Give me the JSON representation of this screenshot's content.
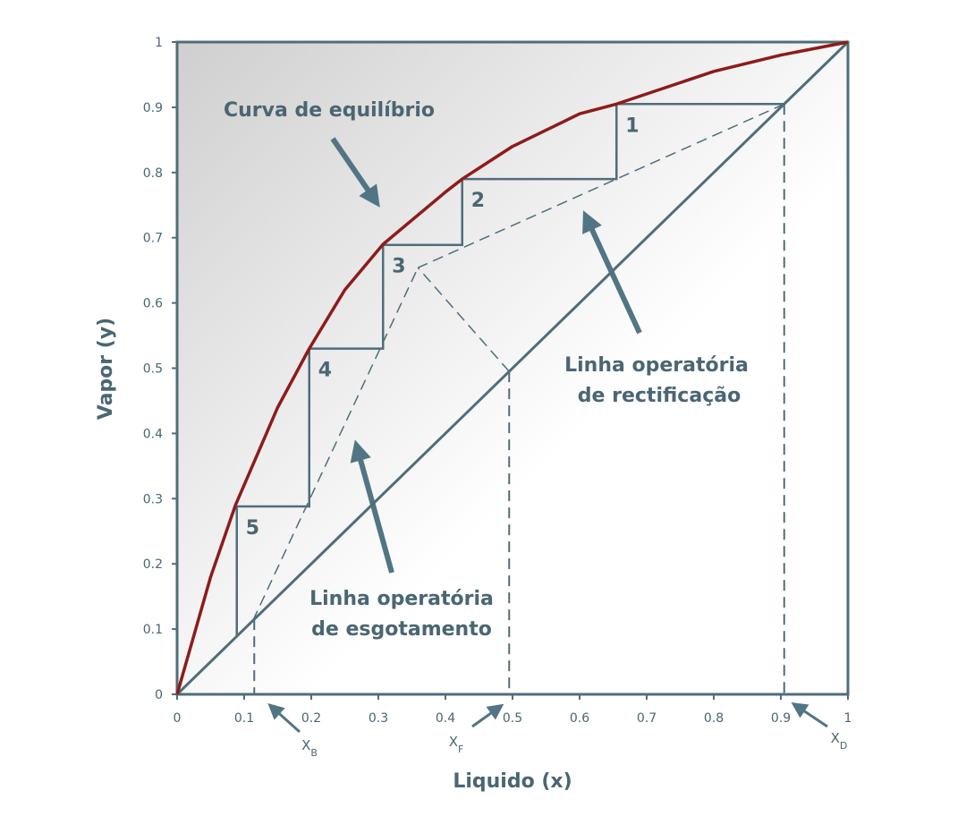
{
  "chart_data": {
    "type": "mccabe-thiele",
    "x_label": "Liquido (x)",
    "y_label": "Vapor (y)",
    "xlim": [
      0,
      1
    ],
    "ylim": [
      0,
      1
    ],
    "xticks": [
      0,
      0.1,
      0.2,
      0.3,
      0.4,
      0.5,
      0.6,
      0.7,
      0.8,
      0.9,
      1
    ],
    "yticks": [
      0,
      0.1,
      0.2,
      0.3,
      0.4,
      0.5,
      0.6,
      0.7,
      0.8,
      0.9,
      1
    ],
    "equilibrium": {
      "label": "Curva de equilíbrio",
      "color": "#8e1b1b",
      "x": [
        0,
        0.05,
        0.087,
        0.15,
        0.197,
        0.25,
        0.307,
        0.4,
        0.425,
        0.5,
        0.6,
        0.655,
        0.8,
        0.9,
        1
      ],
      "y": [
        0,
        0.18,
        0.29,
        0.44,
        0.53,
        0.62,
        0.69,
        0.77,
        0.79,
        0.84,
        0.89,
        0.905,
        0.955,
        0.98,
        1
      ]
    },
    "diagonal": {
      "color": "#4f6d7a",
      "x": [
        0,
        1
      ],
      "y": [
        0,
        1
      ]
    },
    "rectifying_line": {
      "label": [
        "Linha operatória",
        "de rectificação"
      ],
      "x": [
        0.905,
        0.359
      ],
      "y": [
        0.905,
        0.654
      ]
    },
    "stripping_line": {
      "label": [
        "Linha operatória",
        "de esgotamento"
      ],
      "x": [
        0.113,
        0.359
      ],
      "y": [
        0.113,
        0.654
      ]
    },
    "q_line": {
      "x": [
        0.495,
        0.359
      ],
      "y": [
        0.495,
        0.654
      ]
    },
    "stages": {
      "labels": [
        "1",
        "2",
        "3",
        "4",
        "5"
      ],
      "x": [
        0.905,
        0.655,
        0.655,
        0.425,
        0.425,
        0.307,
        0.307,
        0.197,
        0.197,
        0.089,
        0.089
      ],
      "y": [
        0.905,
        0.905,
        0.79,
        0.79,
        0.689,
        0.689,
        0.53,
        0.53,
        0.288,
        0.288,
        0.09
      ]
    },
    "markers": [
      {
        "symbol": "X",
        "subscript": "B",
        "value": 0.115
      },
      {
        "symbol": "X",
        "subscript": "F",
        "value": 0.495
      },
      {
        "symbol": "X",
        "subscript": "D",
        "value": 0.905
      }
    ]
  }
}
